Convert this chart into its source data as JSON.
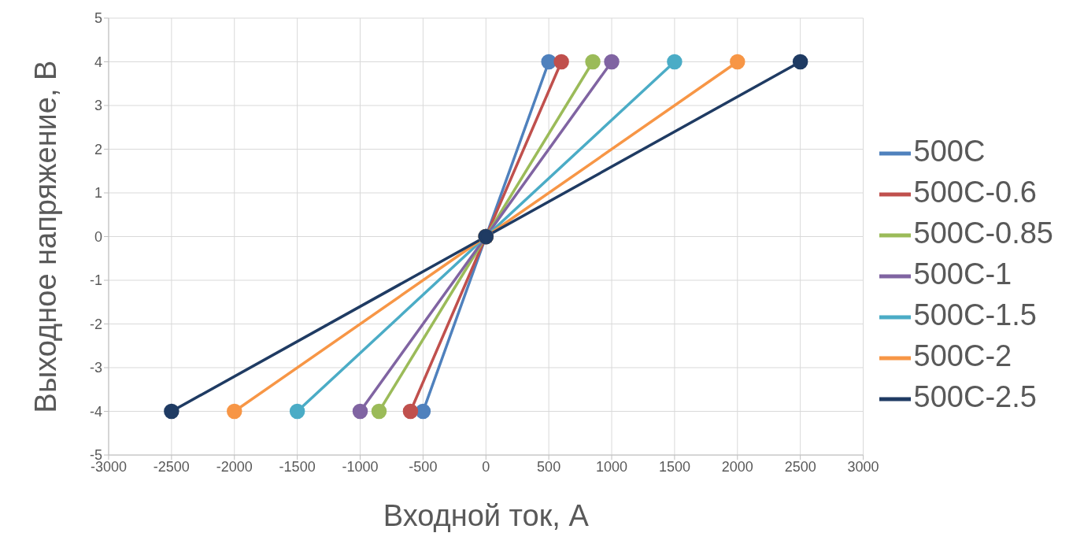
{
  "chart_data": {
    "type": "line",
    "xlabel": "Входной ток, А",
    "ylabel": "Выходное напряжение, В",
    "xlim": [
      -3000,
      3000
    ],
    "xticks": [
      -3000,
      -2500,
      -2000,
      -1500,
      -1000,
      -500,
      0,
      500,
      1000,
      1500,
      2000,
      2500,
      3000
    ],
    "ylim": [
      -5,
      5
    ],
    "yticks": [
      -5,
      -4,
      -3,
      -2,
      -1,
      0,
      1,
      2,
      3,
      4,
      5
    ],
    "grid": true,
    "legend": "right",
    "marker": "circle",
    "line_style": "solid",
    "series": [
      {
        "name": "500C",
        "color": "#4f81bd",
        "x": [
          -500,
          0,
          500
        ],
        "values": [
          -4,
          0,
          4
        ]
      },
      {
        "name": "500C-0.6",
        "color": "#c0504d",
        "x": [
          -600,
          0,
          600
        ],
        "values": [
          -4,
          0,
          4
        ]
      },
      {
        "name": "500C-0.85",
        "color": "#9bbb59",
        "x": [
          -850,
          0,
          850
        ],
        "values": [
          -4,
          0,
          4
        ]
      },
      {
        "name": "500C-1",
        "color": "#8064a2",
        "x": [
          -1000,
          0,
          1000
        ],
        "values": [
          -4,
          0,
          4
        ]
      },
      {
        "name": "500C-1.5",
        "color": "#4bacc6",
        "x": [
          -1500,
          0,
          1500
        ],
        "values": [
          -4,
          0,
          4
        ]
      },
      {
        "name": "500C-2",
        "color": "#f79646",
        "x": [
          -2000,
          0,
          2000
        ],
        "values": [
          -4,
          0,
          4
        ]
      },
      {
        "name": "500C-2.5",
        "color": "#1f3b63",
        "x": [
          -2500,
          0,
          2500
        ],
        "values": [
          -4,
          0,
          4
        ]
      }
    ]
  }
}
